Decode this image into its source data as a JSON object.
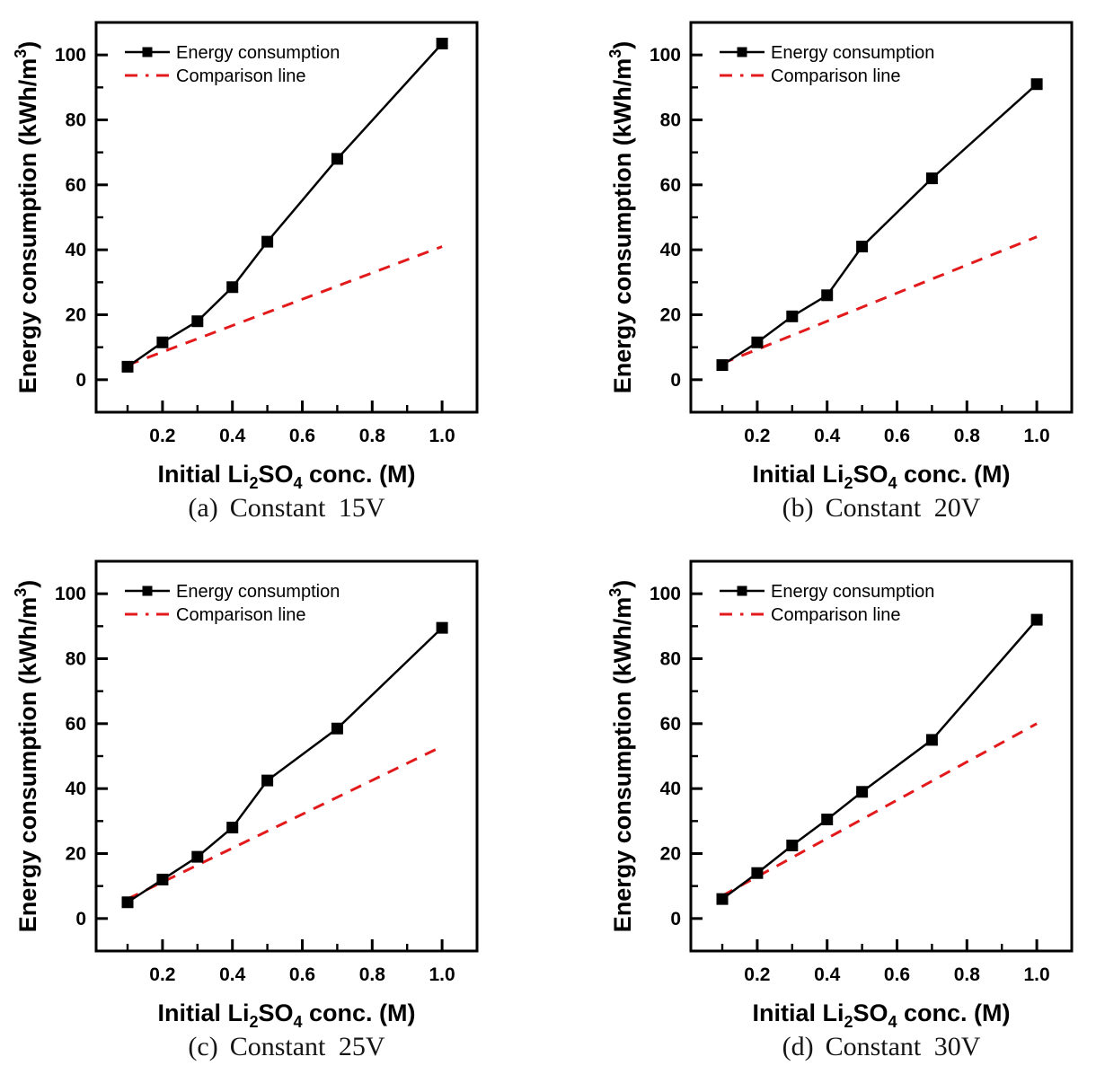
{
  "page": {
    "background": "#ffffff",
    "series_colors": {
      "energy": "#000000",
      "comparison": "#e21a1c"
    }
  },
  "chart_data": [
    {
      "type": "line",
      "caption_tag": "(a)",
      "caption_text": "Constant 15V",
      "xlabel": {
        "pre": "Initial Li",
        "sub1": "2",
        "mid": "SO",
        "sub2": "4",
        "post": " conc. (M)"
      },
      "ylabel": {
        "pre": "Energy consumption (kWh/m",
        "sup": "3",
        "post": ")"
      },
      "legend": [
        "Energy consumption",
        "Comparison line"
      ],
      "legend_position": "top-left",
      "grid": false,
      "x": [
        0.1,
        0.2,
        0.3,
        0.4,
        0.5,
        0.7,
        1.0
      ],
      "series": [
        {
          "name": "Energy consumption",
          "color": "#000000",
          "marker": "square",
          "style": "solid",
          "values": [
            4,
            11.5,
            18,
            28.5,
            42.5,
            68,
            103.5
          ]
        },
        {
          "name": "Comparison line",
          "color": "#e21a1c",
          "marker": "none",
          "style": "dashed",
          "x": [
            0.1,
            1.0
          ],
          "values": [
            4.5,
            41
          ]
        }
      ],
      "xlim": [
        0.01,
        1.1
      ],
      "ylim": [
        -10,
        110
      ],
      "xticks_major": [
        0.2,
        0.4,
        0.6,
        0.8,
        1.0
      ],
      "xticks_minor": [
        0.1,
        0.3,
        0.5,
        0.7,
        0.9
      ],
      "yticks_major": [
        0,
        20,
        40,
        60,
        80,
        100
      ],
      "yticks_minor": [
        10,
        30,
        50,
        70,
        90
      ]
    },
    {
      "type": "line",
      "caption_tag": "(b)",
      "caption_text": "Constant 20V",
      "xlabel": {
        "pre": "Initial Li",
        "sub1": "2",
        "mid": "SO",
        "sub2": "4",
        "post": " conc. (M)"
      },
      "ylabel": {
        "pre": "Energy consumption (kWh/m",
        "sup": "3",
        "post": ")"
      },
      "legend": [
        "Energy consumption",
        "Comparison line"
      ],
      "legend_position": "top-left",
      "grid": false,
      "x": [
        0.1,
        0.2,
        0.3,
        0.4,
        0.5,
        0.7,
        1.0
      ],
      "series": [
        {
          "name": "Energy consumption",
          "color": "#000000",
          "marker": "square",
          "style": "solid",
          "values": [
            4.5,
            11.5,
            19.5,
            26,
            41,
            62,
            91
          ]
        },
        {
          "name": "Comparison line",
          "color": "#e21a1c",
          "marker": "none",
          "style": "dashed",
          "x": [
            0.1,
            1.0
          ],
          "values": [
            5,
            44
          ]
        }
      ],
      "xlim": [
        0.01,
        1.1
      ],
      "ylim": [
        -10,
        110
      ],
      "xticks_major": [
        0.2,
        0.4,
        0.6,
        0.8,
        1.0
      ],
      "xticks_minor": [
        0.1,
        0.3,
        0.5,
        0.7,
        0.9
      ],
      "yticks_major": [
        0,
        20,
        40,
        60,
        80,
        100
      ],
      "yticks_minor": [
        10,
        30,
        50,
        70,
        90
      ]
    },
    {
      "type": "line",
      "caption_tag": "(c)",
      "caption_text": "Constant 25V",
      "xlabel": {
        "pre": "Initial Li",
        "sub1": "2",
        "mid": "SO",
        "sub2": "4",
        "post": " conc. (M)"
      },
      "ylabel": {
        "pre": "Energy consumption (kWh/m",
        "sup": "3",
        "post": ")"
      },
      "legend": [
        "Energy consumption",
        "Comparison line"
      ],
      "legend_position": "top-left",
      "grid": false,
      "x": [
        0.1,
        0.2,
        0.3,
        0.4,
        0.5,
        0.7,
        1.0
      ],
      "series": [
        {
          "name": "Energy consumption",
          "color": "#000000",
          "marker": "square",
          "style": "solid",
          "values": [
            5,
            12,
            19,
            28,
            42.5,
            58.5,
            89.5
          ]
        },
        {
          "name": "Comparison line",
          "color": "#e21a1c",
          "marker": "none",
          "style": "dashed",
          "x": [
            0.1,
            1.0
          ],
          "values": [
            6,
            53
          ]
        }
      ],
      "xlim": [
        0.01,
        1.1
      ],
      "ylim": [
        -10,
        110
      ],
      "xticks_major": [
        0.2,
        0.4,
        0.6,
        0.8,
        1.0
      ],
      "xticks_minor": [
        0.1,
        0.3,
        0.5,
        0.7,
        0.9
      ],
      "yticks_major": [
        0,
        20,
        40,
        60,
        80,
        100
      ],
      "yticks_minor": [
        10,
        30,
        50,
        70,
        90
      ]
    },
    {
      "type": "line",
      "caption_tag": "(d)",
      "caption_text": "Constant 30V",
      "xlabel": {
        "pre": "Initial Li",
        "sub1": "2",
        "mid": "SO",
        "sub2": "4",
        "post": " conc. (M)"
      },
      "ylabel": {
        "pre": "Energy consumption (kWh/m",
        "sup": "3",
        "post": ")"
      },
      "legend": [
        "Energy consumption",
        "Comparison line"
      ],
      "legend_position": "top-left",
      "grid": false,
      "x": [
        0.1,
        0.2,
        0.3,
        0.4,
        0.5,
        0.7,
        1.0
      ],
      "series": [
        {
          "name": "Energy consumption",
          "color": "#000000",
          "marker": "square",
          "style": "solid",
          "values": [
            6,
            14,
            22.5,
            30.5,
            39,
            55,
            92
          ]
        },
        {
          "name": "Comparison line",
          "color": "#e21a1c",
          "marker": "none",
          "style": "dashed",
          "x": [
            0.1,
            1.0
          ],
          "values": [
            7,
            60
          ]
        }
      ],
      "xlim": [
        0.01,
        1.1
      ],
      "ylim": [
        -10,
        110
      ],
      "xticks_major": [
        0.2,
        0.4,
        0.6,
        0.8,
        1.0
      ],
      "xticks_minor": [
        0.1,
        0.3,
        0.5,
        0.7,
        0.9
      ],
      "yticks_major": [
        0,
        20,
        40,
        60,
        80,
        100
      ],
      "yticks_minor": [
        10,
        30,
        50,
        70,
        90
      ]
    }
  ]
}
